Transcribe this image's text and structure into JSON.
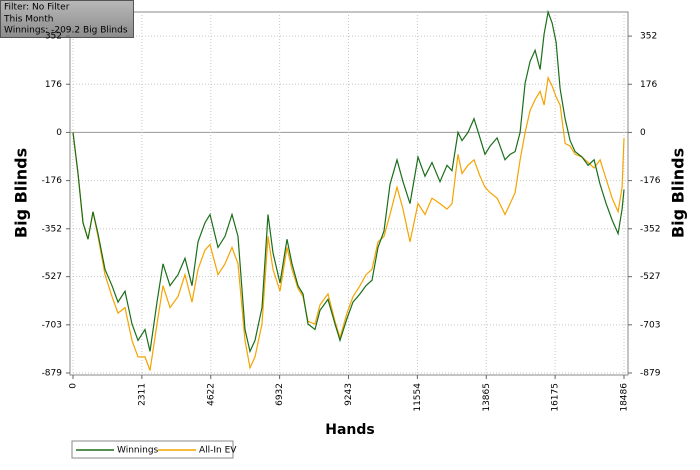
{
  "chart_data": {
    "type": "line",
    "annotations": [
      "Filter: No Filter",
      "This Month",
      "Winnings: -209.2 Big Blinds"
    ],
    "xlabel": "Hands",
    "ylabel": "Big Blinds",
    "x": [
      0,
      168,
      336,
      503,
      671,
      839,
      1074,
      1309,
      1510,
      1745,
      1980,
      2181,
      2416,
      2584,
      2819,
      3020,
      3255,
      3523,
      3758,
      3993,
      4194,
      4429,
      4597,
      4865,
      5100,
      5335,
      5536,
      5771,
      5939,
      6107,
      6342,
      6543,
      6710,
      6945,
      7180,
      7348,
      7550,
      7717,
      7885,
      8120,
      8287,
      8556,
      8791,
      8959,
      9193,
      9395,
      9630,
      9831,
      10032,
      10233,
      10434,
      10636,
      10870,
      11072,
      11307,
      11575,
      11810,
      12045,
      12314,
      12549,
      12716,
      12918,
      13052,
      13253,
      13455,
      13656,
      13824,
      13992,
      14227,
      14495,
      14663,
      14831,
      15000,
      15168,
      15336,
      15503,
      15671,
      15805,
      15940,
      16074,
      16208,
      16342,
      16510,
      16678,
      16845,
      17080,
      17282,
      17483,
      17684,
      17885,
      18087,
      18288,
      18422,
      18486
    ],
    "series": [
      {
        "name": "Winnings",
        "color": "#1a6e1a",
        "values": [
          0,
          -150,
          -330,
          -390,
          -290,
          -370,
          -500,
          -560,
          -620,
          -580,
          -700,
          -760,
          -720,
          -800,
          -620,
          -480,
          -560,
          -520,
          -460,
          -560,
          -400,
          -330,
          -300,
          -420,
          -380,
          -300,
          -380,
          -720,
          -800,
          -760,
          -640,
          -300,
          -440,
          -550,
          -390,
          -480,
          -560,
          -590,
          -700,
          -720,
          -650,
          -610,
          -700,
          -760,
          -680,
          -620,
          -590,
          -560,
          -540,
          -420,
          -360,
          -190,
          -100,
          -180,
          -260,
          -90,
          -160,
          -110,
          -180,
          -120,
          -140,
          0,
          -30,
          0,
          50,
          -20,
          -80,
          -50,
          -20,
          -100,
          -80,
          -70,
          0,
          180,
          260,
          300,
          230,
          360,
          440,
          400,
          330,
          160,
          50,
          -30,
          -70,
          -90,
          -120,
          -100,
          -190,
          -260,
          -320,
          -370,
          -280,
          -209
        ]
      },
      {
        "name": "All-In EV",
        "color": "#f5a300",
        "values": [
          0,
          -150,
          -330,
          -390,
          -290,
          -380,
          -520,
          -600,
          -660,
          -640,
          -760,
          -820,
          -820,
          -870,
          -700,
          -560,
          -640,
          -600,
          -520,
          -620,
          -500,
          -430,
          -410,
          -520,
          -480,
          -420,
          -480,
          -760,
          -860,
          -820,
          -700,
          -380,
          -500,
          -580,
          -420,
          -500,
          -570,
          -600,
          -690,
          -700,
          -630,
          -590,
          -690,
          -750,
          -660,
          -600,
          -560,
          -520,
          -500,
          -400,
          -380,
          -300,
          -200,
          -280,
          -400,
          -260,
          -300,
          -240,
          -260,
          -280,
          -260,
          -80,
          -150,
          -120,
          -100,
          -160,
          -200,
          -220,
          -240,
          -300,
          -260,
          -220,
          -100,
          0,
          80,
          120,
          150,
          100,
          200,
          170,
          130,
          100,
          -40,
          -50,
          -80,
          -90,
          -110,
          -130,
          -100,
          -170,
          -240,
          -290,
          -200,
          -20
        ]
      }
    ],
    "xlim": [
      0,
      18486
    ],
    "xticks": [
      0,
      2311,
      4622,
      6932,
      9243,
      11554,
      13865,
      16175,
      18486
    ],
    "ylim": [
      -879,
      440
    ],
    "yticks": [
      352,
      176,
      0,
      -176,
      -352,
      -527,
      -703,
      -879
    ],
    "grid": true
  }
}
